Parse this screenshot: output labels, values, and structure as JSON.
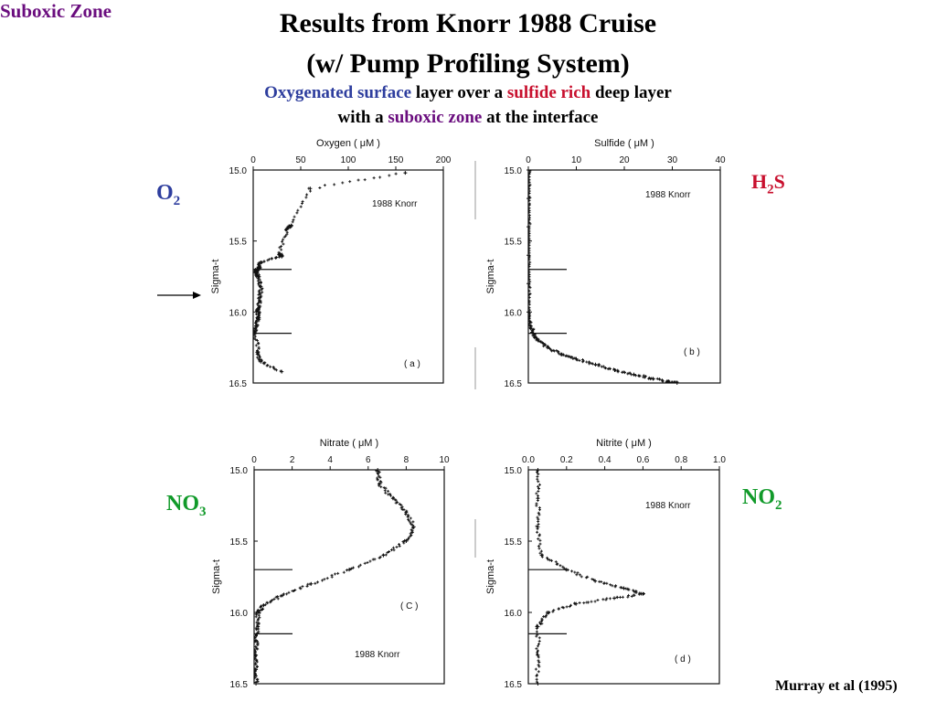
{
  "slide": {
    "title_line1": "Results from Knorr 1988 Cruise",
    "title_line2": "(w/ Pump Profiling System)",
    "subtitle_a": "Oxygenated surface",
    "subtitle_b": " layer over a ",
    "subtitle_c": "sulfide rich",
    "subtitle_d": " deep layer",
    "subtitle_e": "with a ",
    "subtitle_f": "suboxic zone",
    "subtitle_g": " at the interface",
    "label_o2_main": "O",
    "label_o2_sub": "2",
    "label_h2s_a": "H",
    "label_h2s_sub": "2",
    "label_h2s_b": "S",
    "label_no3_main": "NO",
    "label_no3_sub": "3",
    "label_no2_main": "NO",
    "label_no2_sub": "2",
    "suboxic_label": "Suboxic Zone",
    "credit": "Murray et al (1995)",
    "colors": {
      "blue": "#2E3E9E",
      "red": "#C8102E",
      "purple": "#6A0D7E",
      "green": "#119A2A"
    }
  },
  "chart_data": [
    {
      "type": "scatter",
      "title": "Oxygen ( μM )",
      "panel_label": "( a )",
      "annotation": "1988  Knorr",
      "ylabel": "Sigma-t",
      "xlim": [
        0,
        200
      ],
      "ylim": [
        15.0,
        16.5
      ],
      "xticks": [
        "0",
        "50",
        "100",
        "150",
        "200"
      ],
      "yticks": [
        "15.0",
        "15.5",
        "16.0",
        "16.5"
      ],
      "interface_markers": [
        15.7,
        16.15
      ],
      "series": [
        {
          "points": [
            [
              160,
              15.02
            ],
            [
              60,
              15.13
            ],
            [
              40,
              15.39
            ],
            [
              35,
              15.42
            ],
            [
              28,
              15.59
            ],
            [
              30,
              15.61
            ],
            [
              8,
              15.65
            ],
            [
              6,
              15.69
            ],
            [
              4,
              15.7
            ],
            [
              3,
              15.72
            ],
            [
              5,
              15.75
            ],
            [
              8,
              15.82
            ],
            [
              7,
              15.9
            ],
            [
              6,
              15.97
            ],
            [
              5,
              16.0
            ],
            [
              6,
              16.05
            ],
            [
              3,
              16.1
            ],
            [
              2,
              16.15
            ],
            [
              5,
              16.28
            ],
            [
              8,
              16.35
            ],
            [
              30,
              16.42
            ]
          ]
        }
      ]
    },
    {
      "type": "scatter",
      "title": "Sulfide ( μM )",
      "panel_label": "( b )",
      "annotation": "1988  Knorr",
      "ylabel": "Sigma-t",
      "xlim": [
        0,
        40
      ],
      "ylim": [
        15.0,
        16.5
      ],
      "xticks": [
        "0",
        "10",
        "20",
        "30",
        "40"
      ],
      "yticks": [
        "15.0",
        "15.5",
        "16.0",
        "16.5"
      ],
      "interface_markers": [
        15.7,
        16.15
      ],
      "series": [
        {
          "points": [
            [
              0,
              15.0
            ],
            [
              0,
              15.2
            ],
            [
              0,
              15.4
            ],
            [
              0,
              15.6
            ],
            [
              0,
              15.8
            ],
            [
              0,
              16.0
            ],
            [
              0.5,
              16.1
            ],
            [
              1,
              16.15
            ],
            [
              2,
              16.2
            ],
            [
              4,
              16.25
            ],
            [
              7,
              16.3
            ],
            [
              10,
              16.33
            ],
            [
              14,
              16.37
            ],
            [
              18,
              16.41
            ],
            [
              22,
              16.44
            ],
            [
              26,
              16.47
            ],
            [
              29,
              16.49
            ],
            [
              31,
              16.5
            ]
          ]
        }
      ]
    },
    {
      "type": "scatter",
      "title": "Nitrate ( μM )",
      "panel_label": "( C )",
      "annotation": "1988  Knorr",
      "ylabel": "Sigma-t",
      "xlim": [
        0,
        10
      ],
      "ylim": [
        15.0,
        16.5
      ],
      "xticks": [
        "0",
        "2",
        "4",
        "6",
        "8",
        "10"
      ],
      "yticks": [
        "15.0",
        "15.5",
        "16.0",
        "16.5"
      ],
      "interface_markers": [
        15.7,
        16.15
      ],
      "series": [
        {
          "points": [
            [
              6.5,
              15.0
            ],
            [
              6.6,
              15.1
            ],
            [
              7.3,
              15.2
            ],
            [
              8.0,
              15.3
            ],
            [
              8.4,
              15.4
            ],
            [
              8.0,
              15.5
            ],
            [
              6.8,
              15.6
            ],
            [
              5.0,
              15.7
            ],
            [
              3.0,
              15.8
            ],
            [
              1.5,
              15.88
            ],
            [
              0.5,
              15.95
            ],
            [
              0.2,
              16.0
            ],
            [
              0.2,
              16.1
            ],
            [
              0.1,
              16.2
            ],
            [
              0.1,
              16.3
            ],
            [
              0.1,
              16.4
            ],
            [
              0.1,
              16.5
            ]
          ]
        }
      ]
    },
    {
      "type": "scatter",
      "title": "Nitrite ( μM )",
      "panel_label": "( d )",
      "annotation": "1988  Knorr",
      "ylabel": "Sigma-t",
      "xlim": [
        0.0,
        1.0
      ],
      "ylim": [
        15.0,
        16.5
      ],
      "xticks": [
        "0.0",
        "0.2",
        "0.4",
        "0.6",
        "0.8",
        "1.0"
      ],
      "yticks": [
        "15.0",
        "15.5",
        "16.0",
        "16.5"
      ],
      "interface_markers": [
        15.7,
        16.15
      ],
      "series": [
        {
          "points": [
            [
              0.05,
              15.0
            ],
            [
              0.05,
              15.2
            ],
            [
              0.05,
              15.4
            ],
            [
              0.07,
              15.6
            ],
            [
              0.2,
              15.7
            ],
            [
              0.35,
              15.78
            ],
            [
              0.5,
              15.83
            ],
            [
              0.6,
              15.87
            ],
            [
              0.45,
              15.9
            ],
            [
              0.25,
              15.94
            ],
            [
              0.1,
              16.0
            ],
            [
              0.05,
              16.1
            ],
            [
              0.05,
              16.3
            ],
            [
              0.05,
              16.5
            ]
          ]
        }
      ]
    }
  ]
}
